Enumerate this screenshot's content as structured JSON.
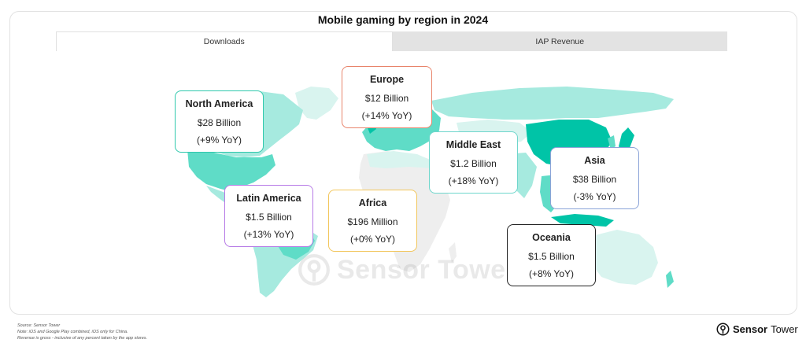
{
  "title": "Mobile gaming by region in 2024",
  "tabs": [
    {
      "label": "Downloads",
      "active": true
    },
    {
      "label": "IAP Revenue",
      "active": false
    }
  ],
  "map_legend_colors": {
    "highest": "#00c4a7",
    "high": "#5fdcc7",
    "medium": "#a6eadf",
    "low": "#d9f4ef",
    "no_data": "#eeeeee"
  },
  "regions": [
    {
      "name": "North America",
      "value": "$28 Billion",
      "yoy": "(+9% YoY)",
      "border_color": "#2fc8ac"
    },
    {
      "name": "Europe",
      "value": "$12 Billion",
      "yoy": "(+14% YoY)",
      "border_color": "#e8846b"
    },
    {
      "name": "Middle East",
      "value": "$1.2 Billion",
      "yoy": "(+18% YoY)",
      "border_color": "#6fd6cc"
    },
    {
      "name": "Asia",
      "value": "$38 Billion",
      "yoy": "(-3% YoY)",
      "border_color": "#8aa3d8"
    },
    {
      "name": "Latin America",
      "value": "$1.5 Billion",
      "yoy": "(+13% YoY)",
      "border_color": "#b67ae6"
    },
    {
      "name": "Africa",
      "value": "$196 Million",
      "yoy": "(+0% YoY)",
      "border_color": "#f2c65c"
    },
    {
      "name": "Oceania",
      "value": "$1.5 Billion",
      "yoy": "(+8% YoY)",
      "border_color": "#222222"
    }
  ],
  "watermark": "Sensor Tower",
  "footer": {
    "source": "Source: Sensor Tower",
    "note": "Note: iOS and Google Play combined, iOS only for China.",
    "revenue_note": "Revenue is gross - inclusive of any percent taken by the app stores."
  },
  "brand": {
    "part1": "Sensor",
    "part2": "Tower"
  }
}
